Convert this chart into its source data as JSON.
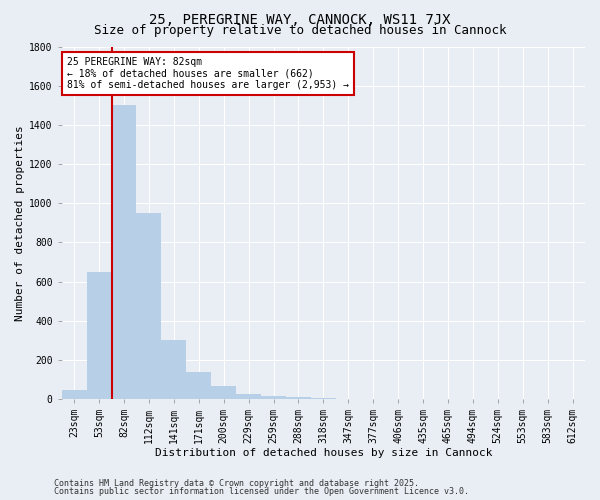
{
  "title": "25, PEREGRINE WAY, CANNOCK, WS11 7JX",
  "subtitle": "Size of property relative to detached houses in Cannock",
  "xlabel": "Distribution of detached houses by size in Cannock",
  "ylabel": "Number of detached properties",
  "categories": [
    "23sqm",
    "53sqm",
    "82sqm",
    "112sqm",
    "141sqm",
    "171sqm",
    "200sqm",
    "229sqm",
    "259sqm",
    "288sqm",
    "318sqm",
    "347sqm",
    "377sqm",
    "406sqm",
    "435sqm",
    "465sqm",
    "494sqm",
    "524sqm",
    "553sqm",
    "583sqm",
    "612sqm"
  ],
  "values": [
    45,
    650,
    1500,
    950,
    300,
    140,
    65,
    25,
    15,
    8,
    3,
    1,
    0,
    0,
    0,
    0,
    0,
    0,
    0,
    0,
    0
  ],
  "bar_color": "#b8cfe8",
  "vline_x": 2,
  "vline_color": "#cc0000",
  "annotation_text": "25 PEREGRINE WAY: 82sqm\n← 18% of detached houses are smaller (662)\n81% of semi-detached houses are larger (2,953) →",
  "annotation_box_facecolor": "#ffffff",
  "annotation_box_edgecolor": "#cc0000",
  "ylim": [
    0,
    1800
  ],
  "yticks": [
    0,
    200,
    400,
    600,
    800,
    1000,
    1200,
    1400,
    1600,
    1800
  ],
  "footer_line1": "Contains HM Land Registry data © Crown copyright and database right 2025.",
  "footer_line2": "Contains public sector information licensed under the Open Government Licence v3.0.",
  "bg_color": "#e8eef4",
  "plot_bg_color": "#e8eef4",
  "grid_color": "#ffffff",
  "title_fontsize": 10,
  "subtitle_fontsize": 9,
  "axis_label_fontsize": 8,
  "tick_fontsize": 7,
  "annotation_fontsize": 7,
  "footer_fontsize": 6
}
